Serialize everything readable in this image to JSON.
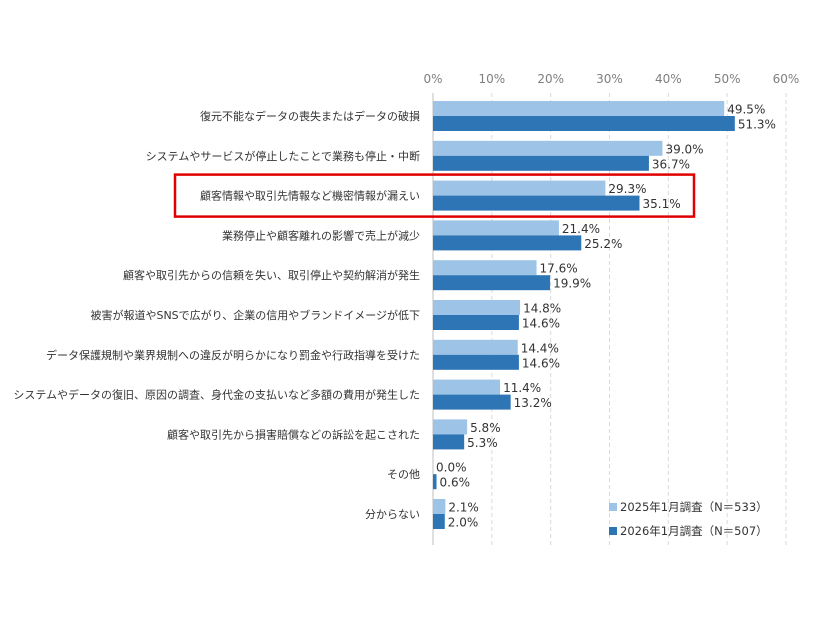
{
  "chart_data": {
    "type": "bar",
    "orientation": "horizontal",
    "title": "",
    "xlabel": "",
    "ylabel": "",
    "xlim": [
      0,
      60
    ],
    "x_ticks": [
      "0%",
      "10%",
      "20%",
      "30%",
      "40%",
      "50%",
      "60%"
    ],
    "grid": "vertical dashed",
    "legend_position": "bottom-right",
    "categories": [
      "復元不能なデータの喪失またはデータの破損",
      "システムやサービスが停止したことで業務も停止・中断",
      "顧客情報や取引先情報など機密情報が漏えい",
      "業務停止や顧客離れの影響で売上が減少",
      "顧客や取引先からの信頼を失い、取引停止や契約解消が発生",
      "被害が報道やSNSで広がり、企業の信用やブランドイメージが低下",
      "データ保護規制や業界規制への違反が明らかになり罰金や行政指導を受けた",
      "システムやデータの復旧、原因の調査、身代金の支払いなど多額の費用が発生した",
      "顧客や取引先から損害賠償などの訴訟を起こされた",
      "その他",
      "分からない"
    ],
    "series": [
      {
        "name": "2025年1月調査（N＝533）",
        "color": "#9dc3e6",
        "values": [
          49.5,
          39.0,
          29.3,
          21.4,
          17.6,
          14.8,
          14.4,
          11.4,
          5.8,
          0.0,
          2.1
        ],
        "labels": [
          "49.5%",
          "39.0%",
          "29.3%",
          "21.4%",
          "17.6%",
          "14.8%",
          "14.4%",
          "11.4%",
          "5.8%",
          "0.0%",
          "2.1%"
        ]
      },
      {
        "name": "2026年1月調査（N＝507）",
        "color": "#2e75b6",
        "values": [
          51.3,
          36.7,
          35.1,
          25.2,
          19.9,
          14.6,
          14.6,
          13.2,
          5.3,
          0.6,
          2.0
        ],
        "labels": [
          "51.3%",
          "36.7%",
          "35.1%",
          "25.2%",
          "19.9%",
          "14.6%",
          "14.6%",
          "13.2%",
          "5.3%",
          "0.6%",
          "2.0%"
        ]
      }
    ],
    "highlight": {
      "category_index": 2,
      "color": "#e00000"
    }
  }
}
